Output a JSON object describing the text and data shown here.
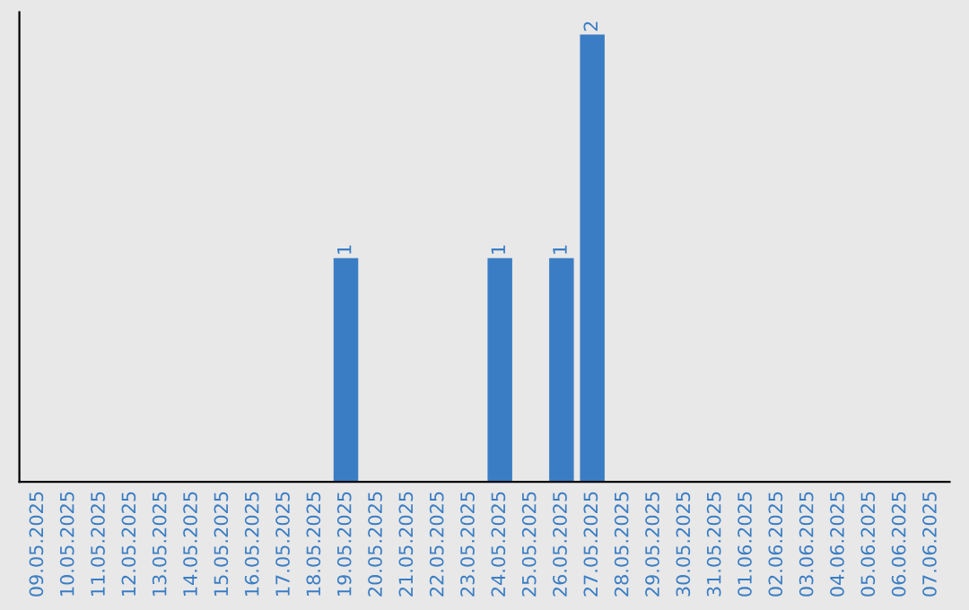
{
  "chart_data": {
    "type": "bar",
    "categories": [
      "09.05.2025",
      "10.05.2025",
      "11.05.2025",
      "12.05.2025",
      "13.05.2025",
      "14.05.2025",
      "15.05.2025",
      "16.05.2025",
      "17.05.2025",
      "18.05.2025",
      "19.05.2025",
      "20.05.2025",
      "21.05.2025",
      "22.05.2025",
      "23.05.2025",
      "24.05.2025",
      "25.05.2025",
      "26.05.2025",
      "27.05.2025",
      "28.05.2025",
      "29.05.2025",
      "30.05.2025",
      "31.05.2025",
      "01.06.2025",
      "02.06.2025",
      "03.06.2025",
      "04.06.2025",
      "05.06.2025",
      "06.06.2025",
      "07.06.2025"
    ],
    "values": [
      0,
      0,
      0,
      0,
      0,
      0,
      0,
      0,
      0,
      0,
      1,
      0,
      0,
      0,
      0,
      1,
      0,
      1,
      2,
      0,
      0,
      0,
      0,
      0,
      0,
      0,
      0,
      0,
      0,
      0
    ],
    "value_labels": [
      null,
      null,
      null,
      null,
      null,
      null,
      null,
      null,
      null,
      null,
      "1",
      null,
      null,
      null,
      null,
      "1",
      null,
      "1",
      "2",
      null,
      null,
      null,
      null,
      null,
      null,
      null,
      null,
      null,
      null,
      null
    ],
    "color": "#3a7dc4",
    "tick_labels": "x",
    "grid": false,
    "legend": false
  }
}
